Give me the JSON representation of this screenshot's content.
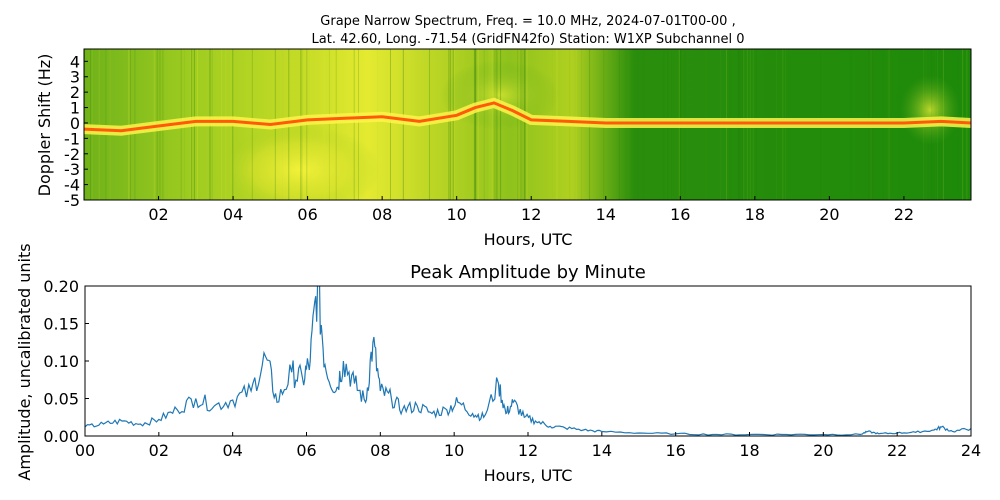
{
  "chart_data": [
    {
      "type": "heatmap",
      "title_line1": "Grape Narrow Spectrum, Freq. = 10.0 MHz, 2024-07-01T00-00 ,",
      "title_line2": "Lat.  42.60, Long. -71.54 (GridFN42fo) Station: W1XP Subchannel 0",
      "xlabel": "Hours, UTC",
      "ylabel": "Doppler Shift (Hz)",
      "xlim": [
        0,
        23.8
      ],
      "ylim": [
        -5,
        4.8
      ],
      "x_ticks": [
        2,
        4,
        6,
        8,
        10,
        12,
        14,
        16,
        18,
        20,
        22
      ],
      "x_tick_labels": [
        "02",
        "04",
        "06",
        "08",
        "10",
        "12",
        "14",
        "16",
        "18",
        "20",
        "22"
      ],
      "y_ticks": [
        4,
        3,
        2,
        1,
        0,
        -1,
        -2,
        -3,
        -4,
        -5
      ],
      "y_tick_labels": [
        "4",
        "3",
        "2",
        "1",
        "0",
        "-1",
        "-2",
        "-3",
        "-4",
        "-5"
      ],
      "colors": {
        "background": "#1e8a0a",
        "mid": "#c8dc1e",
        "high": "#ffff3c",
        "peak": "#ff5a0a"
      },
      "doppler_trace": {
        "x": [
          0,
          1,
          2,
          3,
          4,
          5,
          6,
          7,
          8,
          9,
          10,
          10.5,
          11,
          11.5,
          12,
          13,
          14,
          15,
          16,
          17,
          18,
          19,
          20,
          21,
          22,
          23,
          23.8
        ],
        "y": [
          -0.4,
          -0.5,
          -0.2,
          0.1,
          0.1,
          -0.1,
          0.2,
          0.3,
          0.4,
          0.1,
          0.5,
          1.0,
          1.3,
          0.8,
          0.2,
          0.1,
          0.0,
          0.0,
          0.0,
          0.0,
          0.0,
          0.0,
          0.0,
          0.0,
          0.0,
          0.1,
          0.0
        ]
      }
    },
    {
      "type": "line",
      "title": "Peak Amplitude by Minute",
      "xlabel": "Hours, UTC",
      "ylabel": "Amplitude, uncalibrated units",
      "xlim": [
        0,
        24
      ],
      "ylim": [
        0,
        0.2
      ],
      "x_ticks": [
        0,
        2,
        4,
        6,
        8,
        10,
        12,
        14,
        16,
        18,
        20,
        22,
        24
      ],
      "x_tick_labels": [
        "00",
        "02",
        "04",
        "06",
        "08",
        "10",
        "12",
        "14",
        "16",
        "18",
        "20",
        "22",
        "24"
      ],
      "y_ticks": [
        0,
        0.05,
        0.1,
        0.15,
        0.2
      ],
      "y_tick_labels": [
        "0.00",
        "0.05",
        "0.10",
        "0.15",
        "0.20"
      ],
      "line_color": "#1f77b4",
      "series": [
        {
          "x": [
            0,
            0.5,
            1,
            1.5,
            2,
            2.5,
            3,
            3.5,
            4,
            4.5,
            4.9,
            5.2,
            5.6,
            5.9,
            6.1,
            6.3,
            6.5,
            6.8,
            7.0,
            7.3,
            7.6,
            7.8,
            8.0,
            8.3,
            8.6,
            9.0,
            9.4,
            9.8,
            10.1,
            10.5,
            10.8,
            11.2,
            11.4,
            11.6,
            11.9,
            12.2,
            12.6,
            13.0,
            13.5,
            14,
            15,
            16,
            17,
            18,
            19,
            20,
            21,
            21.2,
            21.5,
            22,
            22.5,
            23,
            23.2,
            23.5,
            24
          ],
          "y": [
            0.012,
            0.016,
            0.02,
            0.016,
            0.022,
            0.035,
            0.05,
            0.04,
            0.048,
            0.06,
            0.105,
            0.045,
            0.085,
            0.075,
            0.1,
            0.205,
            0.095,
            0.06,
            0.1,
            0.07,
            0.045,
            0.125,
            0.06,
            0.05,
            0.035,
            0.04,
            0.03,
            0.035,
            0.045,
            0.03,
            0.025,
            0.07,
            0.03,
            0.045,
            0.025,
            0.02,
            0.013,
            0.011,
            0.008,
            0.006,
            0.004,
            0.003,
            0.002,
            0.002,
            0.002,
            0.002,
            0.002,
            0.006,
            0.003,
            0.004,
            0.005,
            0.008,
            0.012,
            0.006,
            0.01
          ]
        }
      ]
    }
  ]
}
